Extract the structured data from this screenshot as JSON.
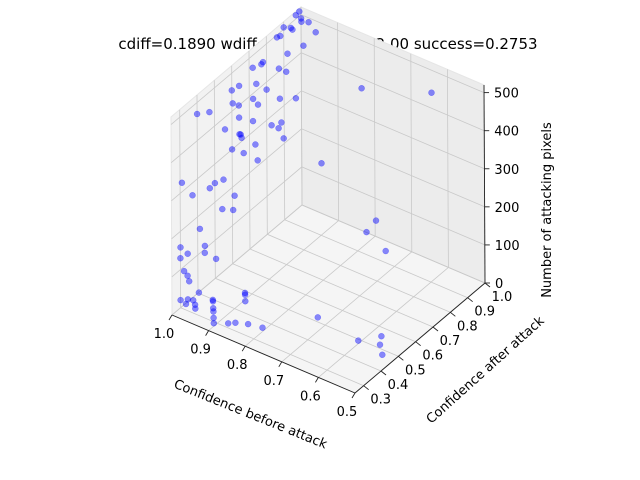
{
  "chart_data": {
    "type": "scatter",
    "title": "cdiff=0.1890 wdiff=0.0146 LP=122.00 success=0.2753",
    "xlabel": "Confidence before attack",
    "ylabel": "Confidence after attack",
    "zlabel": "Number of attacking pixels",
    "xlim": [
      0.5,
      1.0
    ],
    "ylim": [
      0.25,
      1.0
    ],
    "zlim": [
      0,
      520
    ],
    "x_ticks": [
      "0.5",
      "0.6",
      "0.7",
      "0.8",
      "0.9",
      "1.0"
    ],
    "y_ticks": [
      "0.3",
      "0.4",
      "0.5",
      "0.6",
      "0.7",
      "0.8",
      "0.9",
      "1.0"
    ],
    "z_ticks": [
      "0",
      "100",
      "200",
      "300",
      "400",
      "500"
    ],
    "grid": true,
    "point_color": "#0000ff",
    "point_alpha": 0.45,
    "series": [
      {
        "x": [
          0.62,
          0.66,
          0.74,
          0.82,
          0.9,
          0.95,
          0.98,
          0.99,
          0.995,
          1.0,
          1.0,
          0.99,
          1.0,
          0.99,
          1.0,
          1.0,
          0.995,
          0.99,
          1.0,
          1.0,
          0.98,
          0.99,
          1.0,
          0.99,
          1.0,
          1.0,
          0.99,
          1.0,
          1.0,
          0.99,
          0.97,
          0.99,
          1.0,
          0.95,
          0.98,
          0.97,
          0.93,
          0.96,
          0.99,
          0.94,
          0.92,
          0.97,
          0.99,
          0.97,
          0.96,
          0.92,
          0.95,
          0.98,
          0.52,
          0.55,
          0.57,
          0.6,
          0.72,
          0.8,
          0.83,
          0.86,
          0.87,
          0.88,
          0.89,
          0.9,
          0.9,
          0.91,
          0.92,
          0.93,
          0.94,
          0.95,
          0.96,
          0.97,
          0.98,
          0.99,
          1.0,
          0.93,
          0.95,
          0.97,
          0.99,
          1.0,
          0.98,
          0.99,
          1.0,
          1.0,
          0.99,
          1.0,
          1.0,
          0.97,
          0.98,
          0.95,
          0.99,
          1.0,
          0.93,
          0.96,
          0.75,
          0.8,
          0.7
        ],
        "y": [
          0.95,
          0.4,
          0.8,
          0.45,
          0.35,
          0.5,
          0.6,
          0.7,
          0.85,
          0.9,
          0.4,
          0.45,
          0.6,
          0.75,
          0.95,
          1.0,
          0.3,
          0.35,
          0.5,
          0.55,
          0.3,
          0.3,
          0.35,
          0.32,
          0.6,
          0.65,
          0.7,
          0.75,
          0.8,
          0.85,
          0.35,
          0.28,
          0.3,
          0.5,
          0.5,
          0.55,
          0.6,
          0.65,
          0.45,
          0.75,
          0.8,
          0.85,
          0.9,
          0.95,
          1.0,
          0.7,
          0.3,
          0.3,
          0.45,
          0.5,
          0.55,
          0.48,
          0.5,
          0.35,
          0.33,
          0.32,
          0.3,
          0.42,
          0.44,
          0.46,
          0.28,
          0.3,
          0.32,
          0.34,
          0.36,
          0.38,
          0.3,
          0.32,
          0.33,
          0.31,
          0.3,
          0.52,
          0.55,
          0.58,
          0.62,
          0.64,
          0.68,
          0.72,
          0.78,
          0.88,
          0.92,
          0.97,
          0.99,
          0.98,
          0.96,
          0.4,
          0.42,
          0.44,
          0.75,
          0.8,
          0.9,
          0.95,
          0.85
        ],
        "z": [
          470,
          480,
          490,
          495,
          490,
          480,
          475,
          480,
          500,
          505,
          470,
          460,
          455,
          470,
          480,
          490,
          330,
          280,
          250,
          240,
          150,
          100,
          50,
          80,
          300,
          320,
          340,
          360,
          380,
          420,
          200,
          170,
          130,
          200,
          190,
          210,
          300,
          310,
          260,
          400,
          390,
          420,
          440,
          450,
          470,
          350,
          60,
          30,
          15,
          10,
          5,
          8,
          12,
          10,
          15,
          10,
          12,
          20,
          25,
          18,
          8,
          10,
          15,
          12,
          18,
          10,
          14,
          12,
          16,
          10,
          20,
          350,
          370,
          360,
          380,
          400,
          410,
          430,
          460,
          490,
          500,
          510,
          512,
          500,
          505,
          110,
          120,
          90,
          300,
          310,
          100,
          30,
          60
        ]
      }
    ]
  }
}
